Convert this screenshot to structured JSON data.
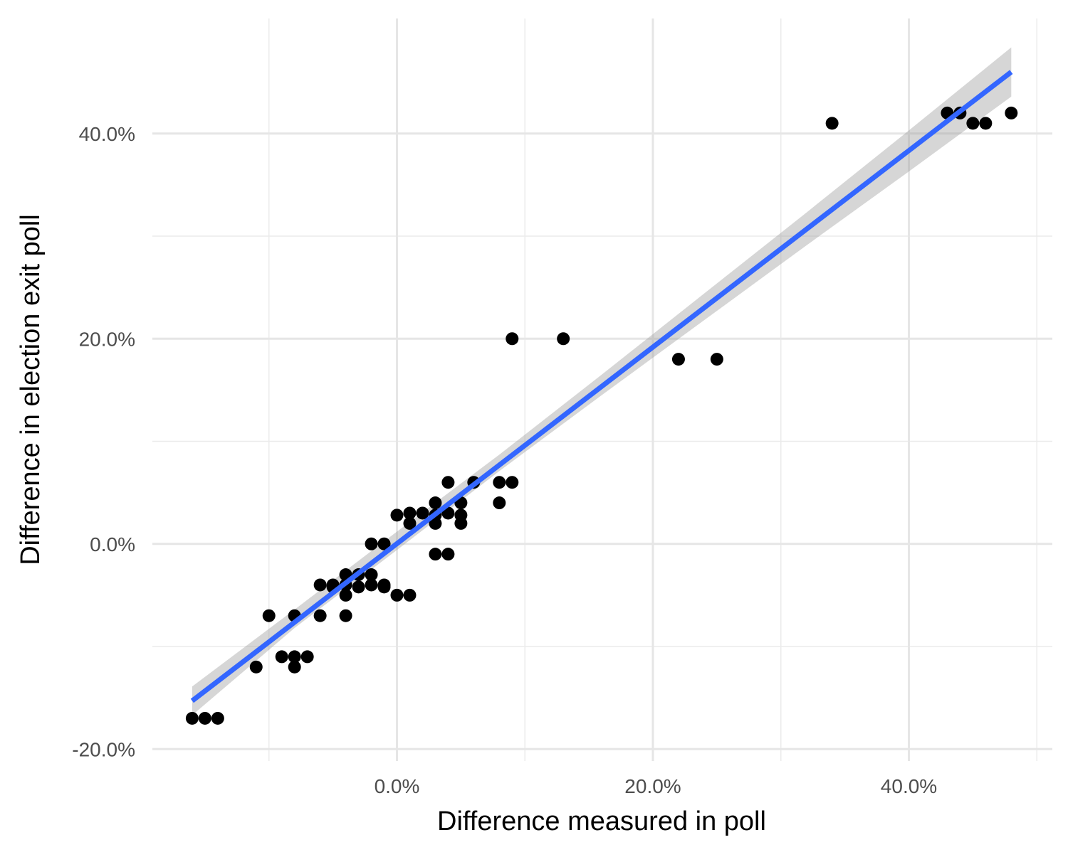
{
  "chart_data": {
    "type": "scatter",
    "title": "",
    "xlabel": "Difference measured in poll",
    "ylabel": "Difference in election exit poll",
    "xlim": [
      -0.19,
      0.51
    ],
    "ylim": [
      -0.21,
      0.5
    ],
    "x_ticks": [
      {
        "value": 0.0,
        "label": "0.0%"
      },
      {
        "value": 0.2,
        "label": "20.0%"
      },
      {
        "value": 0.4,
        "label": "40.0%"
      }
    ],
    "y_ticks": [
      {
        "value": -0.2,
        "label": "-20.0%"
      },
      {
        "value": 0.0,
        "label": "0.0%"
      },
      {
        "value": 0.2,
        "label": "20.0%"
      },
      {
        "value": 0.4,
        "label": "40.0%"
      }
    ],
    "x_minor_gridlines": [
      -0.1,
      0.1,
      0.3,
      0.5
    ],
    "y_minor_gridlines": [
      -0.1,
      0.1,
      0.3
    ],
    "grid": true,
    "points": [
      {
        "x": -0.16,
        "y": -0.17
      },
      {
        "x": -0.15,
        "y": -0.17
      },
      {
        "x": -0.14,
        "y": -0.17
      },
      {
        "x": -0.11,
        "y": -0.12
      },
      {
        "x": -0.1,
        "y": -0.07
      },
      {
        "x": -0.09,
        "y": -0.11
      },
      {
        "x": -0.08,
        "y": -0.07
      },
      {
        "x": -0.08,
        "y": -0.11
      },
      {
        "x": -0.08,
        "y": -0.12
      },
      {
        "x": -0.07,
        "y": -0.11
      },
      {
        "x": -0.06,
        "y": -0.04
      },
      {
        "x": -0.06,
        "y": -0.07
      },
      {
        "x": -0.05,
        "y": -0.04
      },
      {
        "x": -0.05,
        "y": -0.042
      },
      {
        "x": -0.04,
        "y": -0.03
      },
      {
        "x": -0.04,
        "y": -0.04
      },
      {
        "x": -0.04,
        "y": -0.05
      },
      {
        "x": -0.04,
        "y": -0.07
      },
      {
        "x": -0.03,
        "y": -0.03
      },
      {
        "x": -0.03,
        "y": -0.042
      },
      {
        "x": -0.02,
        "y": 0.0
      },
      {
        "x": -0.02,
        "y": -0.03
      },
      {
        "x": -0.02,
        "y": -0.04
      },
      {
        "x": -0.01,
        "y": 0.0
      },
      {
        "x": -0.01,
        "y": -0.04
      },
      {
        "x": -0.01,
        "y": -0.042
      },
      {
        "x": 0.0,
        "y": 0.028
      },
      {
        "x": 0.0,
        "y": -0.05
      },
      {
        "x": 0.01,
        "y": 0.02
      },
      {
        "x": 0.01,
        "y": 0.03
      },
      {
        "x": 0.01,
        "y": -0.05
      },
      {
        "x": 0.02,
        "y": 0.03
      },
      {
        "x": 0.03,
        "y": 0.04
      },
      {
        "x": 0.03,
        "y": 0.028
      },
      {
        "x": 0.03,
        "y": 0.02
      },
      {
        "x": 0.03,
        "y": -0.01
      },
      {
        "x": 0.04,
        "y": 0.06
      },
      {
        "x": 0.04,
        "y": 0.03
      },
      {
        "x": 0.04,
        "y": -0.01
      },
      {
        "x": 0.05,
        "y": 0.04
      },
      {
        "x": 0.05,
        "y": 0.028
      },
      {
        "x": 0.05,
        "y": 0.02
      },
      {
        "x": 0.06,
        "y": 0.06
      },
      {
        "x": 0.08,
        "y": 0.06
      },
      {
        "x": 0.08,
        "y": 0.04
      },
      {
        "x": 0.09,
        "y": 0.2
      },
      {
        "x": 0.09,
        "y": 0.06
      },
      {
        "x": 0.13,
        "y": 0.2
      },
      {
        "x": 0.22,
        "y": 0.18
      },
      {
        "x": 0.25,
        "y": 0.18
      },
      {
        "x": 0.34,
        "y": 0.41
      },
      {
        "x": 0.43,
        "y": 0.42
      },
      {
        "x": 0.44,
        "y": 0.42
      },
      {
        "x": 0.45,
        "y": 0.41
      },
      {
        "x": 0.46,
        "y": 0.41
      },
      {
        "x": 0.48,
        "y": 0.42
      }
    ],
    "fit_line": {
      "color": "#3366FF",
      "x": [
        -0.16,
        0.48
      ],
      "y": [
        -0.153,
        0.46
      ]
    },
    "confidence_band": {
      "color": "#999999",
      "x": [
        -0.16,
        -0.08,
        0.0,
        0.08,
        0.16,
        0.24,
        0.32,
        0.4,
        0.48
      ],
      "lower": [
        -0.167,
        -0.082,
        -0.006,
        0.071,
        0.145,
        0.218,
        0.291,
        0.363,
        0.436
      ],
      "upper": [
        -0.139,
        -0.064,
        0.012,
        0.087,
        0.165,
        0.244,
        0.323,
        0.403,
        0.484
      ]
    },
    "point_color": "#000000",
    "legend": "none"
  }
}
